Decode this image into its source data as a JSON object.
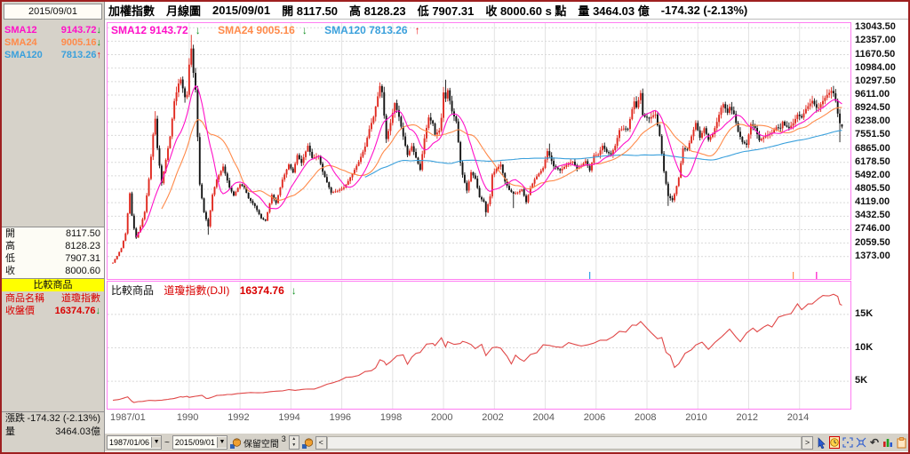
{
  "titlebar": {
    "instrument": "加權指數",
    "period": "月線圖",
    "date": "2015/09/01",
    "open_label": "開",
    "open": "8117.50",
    "high_label": "高",
    "high": "8128.23",
    "low_label": "低",
    "low": "7907.31",
    "close_label": "收",
    "close": "8000.60",
    "close_flag": "s 點",
    "vol_label": "量",
    "volume": "3464.03",
    "vol_unit": "億",
    "change": "-174.32 (-2.13%)"
  },
  "sidebar": {
    "date": "2015/09/01",
    "sma": [
      {
        "label": "SMA12",
        "value": "9143.72",
        "arrow": "↓",
        "color": "#ff10c8",
        "arrow_color": "#0f8f1f"
      },
      {
        "label": "SMA24",
        "value": "9005.16",
        "arrow": "↓",
        "color": "#ff8a4a",
        "arrow_color": "#0f8f1f"
      },
      {
        "label": "SMA120",
        "value": "7813.26",
        "arrow": "↑",
        "color": "#3aa0dc",
        "arrow_color": "#ee1111"
      }
    ],
    "ohlc": [
      {
        "label": "開",
        "value": "8117.50"
      },
      {
        "label": "高",
        "value": "8128.23"
      },
      {
        "label": "低",
        "value": "7907.31"
      },
      {
        "label": "收",
        "value": "8000.60"
      }
    ],
    "compare": {
      "header": "比較商品",
      "name_label": "商品名稱",
      "name": "道瓊指數",
      "price_label": "收盤價",
      "price": "16374.76",
      "arrow": "↓",
      "arrow_color": "#0f8f1f"
    },
    "bottom": [
      {
        "label": "漲跌",
        "value": "-174.32 (-2.13%)"
      },
      {
        "label": "量",
        "value": "3464.03億"
      }
    ]
  },
  "main_chart": {
    "legend": [
      {
        "label": "SMA12 9143.72",
        "arrow": "↓",
        "color": "#ff10c8",
        "arrow_color": "#0f8f1f"
      },
      {
        "label": "SMA24 9005.16",
        "arrow": "↓",
        "color": "#ff8a4a",
        "arrow_color": "#0f8f1f"
      },
      {
        "label": "SMA120 7813.26",
        "arrow": "↑",
        "color": "#3aa0dc",
        "arrow_color": "#ee1111"
      }
    ],
    "y_ticks": [
      "13043.50",
      "12357.00",
      "11670.50",
      "10984.00",
      "10297.50",
      "9611.00",
      "8924.50",
      "8238.00",
      "7551.50",
      "6865.00",
      "6178.50",
      "5492.00",
      "4805.50",
      "4119.00",
      "3432.50",
      "2746.00",
      "2059.50",
      "1373.00"
    ],
    "x_ticks": [
      {
        "label": "1987/01",
        "month": 0
      },
      {
        "label": "1990",
        "month": 36
      },
      {
        "label": "1992",
        "month": 60
      },
      {
        "label": "1994",
        "month": 84
      },
      {
        "label": "1996",
        "month": 108
      },
      {
        "label": "1998",
        "month": 132
      },
      {
        "label": "2000",
        "month": 156
      },
      {
        "label": "2002",
        "month": 180
      },
      {
        "label": "2004",
        "month": 204
      },
      {
        "label": "2006",
        "month": 228
      },
      {
        "label": "2008",
        "month": 252
      },
      {
        "label": "2010",
        "month": 276
      },
      {
        "label": "2012",
        "month": 300
      },
      {
        "label": "2014",
        "month": 324
      }
    ]
  },
  "comp_chart": {
    "title": "比較商品",
    "series_label": "道瓊指數(DJI)",
    "value": "16374.76",
    "arrow": "↓",
    "arrow_color": "#0f8f1f",
    "y_ticks": [
      {
        "label": "15K",
        "value": 15000
      },
      {
        "label": "10K",
        "value": 10000
      },
      {
        "label": "5K",
        "value": 5000
      }
    ]
  },
  "toolbar": {
    "start_date": "1987/01/06",
    "separator": "~",
    "end_date": "2015/09/01",
    "dropdown_glyph": "▼",
    "reserve_label": "保留空間",
    "reserve_value": "3",
    "spin_up": "▲",
    "spin_down": "▼",
    "scroll_left": "<",
    "scroll_right": ">",
    "undo_glyph": "↶"
  },
  "chart_data": {
    "type": "candlestick+line",
    "title": "加權指數 月線圖 (TAIEX monthly) with 道瓊指數(DJI) comparison",
    "main_value_range": [
      230,
      13280
    ],
    "comp_value_range": [
      900,
      19900
    ],
    "months_start": "1987/01",
    "months_end": "2015/09",
    "month_count": 345,
    "grid_years_step": 2,
    "taiex_monthly_close_keypoints": [
      [
        0,
        1063
      ],
      [
        2,
        1405
      ],
      [
        4,
        1800
      ],
      [
        6,
        2550
      ],
      [
        8,
        4600
      ],
      [
        9,
        3460
      ],
      [
        10,
        2800
      ],
      [
        11,
        2339
      ],
      [
        13,
        2900
      ],
      [
        15,
        3650
      ],
      [
        17,
        5331
      ],
      [
        19,
        7600
      ],
      [
        20,
        8402
      ],
      [
        21,
        6900
      ],
      [
        23,
        5119
      ],
      [
        25,
        6300
      ],
      [
        27,
        7500
      ],
      [
        29,
        9300
      ],
      [
        31,
        10200
      ],
      [
        32,
        10403
      ],
      [
        34,
        9500
      ],
      [
        35,
        9624
      ],
      [
        36,
        11162
      ],
      [
        37,
        11983
      ],
      [
        38,
        10740
      ],
      [
        39,
        9887
      ],
      [
        41,
        5049
      ],
      [
        43,
        3635
      ],
      [
        45,
        2912
      ],
      [
        47,
        4530
      ],
      [
        49,
        5300
      ],
      [
        52,
        5963
      ],
      [
        55,
        4900
      ],
      [
        57,
        4485
      ],
      [
        60,
        5059
      ],
      [
        62,
        4900
      ],
      [
        64,
        4350
      ],
      [
        67,
        3950
      ],
      [
        70,
        3327
      ],
      [
        72,
        3201
      ],
      [
        75,
        4520
      ],
      [
        77,
        4100
      ],
      [
        80,
        5300
      ],
      [
        83,
        6070
      ],
      [
        85,
        5660
      ],
      [
        87,
        6548
      ],
      [
        89,
        6150
      ],
      [
        92,
        7025
      ],
      [
        94,
        6400
      ],
      [
        97,
        6509
      ],
      [
        99,
        5700
      ],
      [
        103,
        4630
      ],
      [
        106,
        4727
      ],
      [
        109,
        4888
      ],
      [
        110,
        5032
      ],
      [
        113,
        5600
      ],
      [
        116,
        6200
      ],
      [
        119,
        6982
      ],
      [
        121,
        7875
      ],
      [
        123,
        8500
      ],
      [
        126,
        10066
      ],
      [
        127,
        9756
      ],
      [
        129,
        7367
      ],
      [
        131,
        8187
      ],
      [
        133,
        9202
      ],
      [
        135,
        8500
      ],
      [
        137,
        7500
      ],
      [
        139,
        6550
      ],
      [
        141,
        7000
      ],
      [
        143,
        6418
      ],
      [
        145,
        5798
      ],
      [
        147,
        7400
      ],
      [
        149,
        8467
      ],
      [
        151,
        8157
      ],
      [
        152,
        7598
      ],
      [
        154,
        7800
      ],
      [
        155,
        8448
      ],
      [
        156,
        9744
      ],
      [
        157,
        9435
      ],
      [
        158,
        9854
      ],
      [
        160,
        8777
      ],
      [
        162,
        8265
      ],
      [
        164,
        6161
      ],
      [
        165,
        5544
      ],
      [
        167,
        4739
      ],
      [
        169,
        5674
      ],
      [
        171,
        5350
      ],
      [
        173,
        4400
      ],
      [
        175,
        4176
      ],
      [
        176,
        3636
      ],
      [
        178,
        4441
      ],
      [
        179,
        5551
      ],
      [
        181,
        5850
      ],
      [
        183,
        6065
      ],
      [
        185,
        5200
      ],
      [
        187,
        4770
      ],
      [
        189,
        4579
      ],
      [
        191,
        4646
      ],
      [
        193,
        4800
      ],
      [
        195,
        4148
      ],
      [
        197,
        4872
      ],
      [
        199,
        5318
      ],
      [
        201,
        5611
      ],
      [
        203,
        5890
      ],
      [
        205,
        6750
      ],
      [
        206,
        6522
      ],
      [
        208,
        5977
      ],
      [
        211,
        5765
      ],
      [
        213,
        5945
      ],
      [
        215,
        6139
      ],
      [
        217,
        6208
      ],
      [
        219,
        5850
      ],
      [
        221,
        6012
      ],
      [
        223,
        6241
      ],
      [
        225,
        5764
      ],
      [
        227,
        6548
      ],
      [
        229,
        6561
      ],
      [
        231,
        7024
      ],
      [
        233,
        6704
      ],
      [
        235,
        6586
      ],
      [
        237,
        7021
      ],
      [
        239,
        7823
      ],
      [
        241,
        7901
      ],
      [
        243,
        7884
      ],
      [
        245,
        8883
      ],
      [
        246,
        9287
      ],
      [
        247,
        8982
      ],
      [
        249,
        9711
      ],
      [
        250,
        8586
      ],
      [
        251,
        8506
      ],
      [
        253,
        8413
      ],
      [
        255,
        8573
      ],
      [
        256,
        8619
      ],
      [
        258,
        7523
      ],
      [
        260,
        5719
      ],
      [
        262,
        4460
      ],
      [
        264,
        4248
      ],
      [
        265,
        4557
      ],
      [
        267,
        5390
      ],
      [
        269,
        6890
      ],
      [
        271,
        6825
      ],
      [
        273,
        7509
      ],
      [
        275,
        8188
      ],
      [
        277,
        7436
      ],
      [
        279,
        7920
      ],
      [
        281,
        7329
      ],
      [
        283,
        7616
      ],
      [
        285,
        8237
      ],
      [
        287,
        8972
      ],
      [
        288,
        9145
      ],
      [
        290,
        8705
      ],
      [
        291,
        9008
      ],
      [
        293,
        8644
      ],
      [
        295,
        7741
      ],
      [
        297,
        7216
      ],
      [
        299,
        7072
      ],
      [
        301,
        8121
      ],
      [
        303,
        7933
      ],
      [
        305,
        7296
      ],
      [
        307,
        7452
      ],
      [
        309,
        7581
      ],
      [
        311,
        7699
      ],
      [
        313,
        7964
      ],
      [
        315,
        7919
      ],
      [
        316,
        8254
      ],
      [
        317,
        8062
      ],
      [
        319,
        7923
      ],
      [
        321,
        8173
      ],
      [
        323,
        8611
      ],
      [
        325,
        8462
      ],
      [
        327,
        8898
      ],
      [
        329,
        9184
      ],
      [
        330,
        9315
      ],
      [
        332,
        8967
      ],
      [
        333,
        8974
      ],
      [
        335,
        9307
      ],
      [
        337,
        9622
      ],
      [
        339,
        9820
      ],
      [
        340,
        9701
      ],
      [
        341,
        9323
      ],
      [
        342,
        8665
      ],
      [
        343,
        8174
      ],
      [
        344,
        8000.6
      ]
    ],
    "candle_overrides": {
      "20": {
        "high": 8790
      },
      "37": {
        "high": 12682
      },
      "45": {
        "low": 2485
      },
      "126": {
        "high": 10256
      },
      "157": {
        "high": 10393
      },
      "176": {
        "low": 3411
      },
      "189": {
        "low": 3845
      },
      "206": {
        "high": 7135
      },
      "249": {
        "high": 9859
      },
      "262": {
        "low": 3955
      },
      "339": {
        "high": 10014
      },
      "343": {
        "low": 7203
      },
      "344": {
        "open": 8117.5,
        "high": 8128.23,
        "low": 7907.31,
        "close": 8000.6
      }
    },
    "dow_monthly_close_keypoints": [
      [
        0,
        2158
      ],
      [
        3,
        2286
      ],
      [
        7,
        2662
      ],
      [
        9,
        1994
      ],
      [
        10,
        1833
      ],
      [
        12,
        1958
      ],
      [
        14,
        1988
      ],
      [
        17,
        2142
      ],
      [
        20,
        2113
      ],
      [
        23,
        2168
      ],
      [
        26,
        2294
      ],
      [
        29,
        2440
      ],
      [
        32,
        2693
      ],
      [
        33,
        2645
      ],
      [
        35,
        2753
      ],
      [
        36,
        2590
      ],
      [
        38,
        2707
      ],
      [
        42,
        2905
      ],
      [
        44,
        2452
      ],
      [
        45,
        2442
      ],
      [
        47,
        2634
      ],
      [
        49,
        2882
      ],
      [
        52,
        2930
      ],
      [
        54,
        3025
      ],
      [
        56,
        3017
      ],
      [
        59,
        3168
      ],
      [
        62,
        3235
      ],
      [
        65,
        3318
      ],
      [
        68,
        3272
      ],
      [
        71,
        3301
      ],
      [
        74,
        3435
      ],
      [
        77,
        3516
      ],
      [
        80,
        3555
      ],
      [
        83,
        3754
      ],
      [
        86,
        3636
      ],
      [
        89,
        3765
      ],
      [
        92,
        3843
      ],
      [
        95,
        3834
      ],
      [
        98,
        4157
      ],
      [
        101,
        4556
      ],
      [
        104,
        4789
      ],
      [
        107,
        5117
      ],
      [
        110,
        5587
      ],
      [
        113,
        5655
      ],
      [
        116,
        5882
      ],
      [
        119,
        6448
      ],
      [
        122,
        6584
      ],
      [
        124,
        7009
      ],
      [
        126,
        8222
      ],
      [
        128,
        7945
      ],
      [
        129,
        7442
      ],
      [
        131,
        7908
      ],
      [
        134,
        8800
      ],
      [
        137,
        8952
      ],
      [
        139,
        7539
      ],
      [
        141,
        8592
      ],
      [
        143,
        9181
      ],
      [
        145,
        9307
      ],
      [
        148,
        10559
      ],
      [
        151,
        10655
      ],
      [
        152,
        10337
      ],
      [
        155,
        11497
      ],
      [
        157,
        10128
      ],
      [
        158,
        10921
      ],
      [
        161,
        10522
      ],
      [
        164,
        10650
      ],
      [
        165,
        10971
      ],
      [
        167,
        10786
      ],
      [
        169,
        10495
      ],
      [
        171,
        9879
      ],
      [
        174,
        10522
      ],
      [
        176,
        8847
      ],
      [
        179,
        10021
      ],
      [
        181,
        10106
      ],
      [
        183,
        9946
      ],
      [
        186,
        8736
      ],
      [
        188,
        7591
      ],
      [
        190,
        8896
      ],
      [
        192,
        8342
      ],
      [
        194,
        7992
      ],
      [
        197,
        8985
      ],
      [
        200,
        9275
      ],
      [
        203,
        10453
      ],
      [
        206,
        10357
      ],
      [
        209,
        10140
      ],
      [
        212,
        10080
      ],
      [
        215,
        10783
      ],
      [
        218,
        10504
      ],
      [
        221,
        10275
      ],
      [
        224,
        10440
      ],
      [
        227,
        10717
      ],
      [
        230,
        11150
      ],
      [
        233,
        11150
      ],
      [
        236,
        11679
      ],
      [
        239,
        12463
      ],
      [
        242,
        12354
      ],
      [
        245,
        13409
      ],
      [
        247,
        13358
      ],
      [
        249,
        13930
      ],
      [
        251,
        13265
      ],
      [
        254,
        12262
      ],
      [
        257,
        11350
      ],
      [
        259,
        11544
      ],
      [
        261,
        9325
      ],
      [
        263,
        8829
      ],
      [
        265,
        7062
      ],
      [
        267,
        7609
      ],
      [
        270,
        9172
      ],
      [
        273,
        9712
      ],
      [
        275,
        10428
      ],
      [
        278,
        10857
      ],
      [
        281,
        9774
      ],
      [
        284,
        10788
      ],
      [
        287,
        11577
      ],
      [
        291,
        12810
      ],
      [
        294,
        11614
      ],
      [
        296,
        10913
      ],
      [
        299,
        12217
      ],
      [
        302,
        12952
      ],
      [
        304,
        12393
      ],
      [
        307,
        13091
      ],
      [
        309,
        13437
      ],
      [
        311,
        13104
      ],
      [
        314,
        14579
      ],
      [
        317,
        14910
      ],
      [
        320,
        15130
      ],
      [
        323,
        16576
      ],
      [
        325,
        15698
      ],
      [
        328,
        16563
      ],
      [
        330,
        16563
      ],
      [
        333,
        17391
      ],
      [
        335,
        17823
      ],
      [
        338,
        17776
      ],
      [
        340,
        18010
      ],
      [
        342,
        17690
      ],
      [
        343,
        16528
      ],
      [
        344,
        16374.76
      ]
    ],
    "sma_periods": [
      12,
      24,
      120
    ],
    "sma_colors": [
      "#ff10c8",
      "#ff8a4a",
      "#3aa0dc"
    ],
    "event_spikes": [
      {
        "month": 225,
        "color": "#2da0e8"
      },
      {
        "month": 321,
        "color": "#ff8a4a"
      },
      {
        "month": 332,
        "color": "#ff10c8"
      }
    ],
    "colors": {
      "candle_up": "#e02a20",
      "candle_down": "#141414",
      "dow_line": "#e04848",
      "grid": "#d9d9d9",
      "panel_border": "#ff7df2"
    }
  }
}
